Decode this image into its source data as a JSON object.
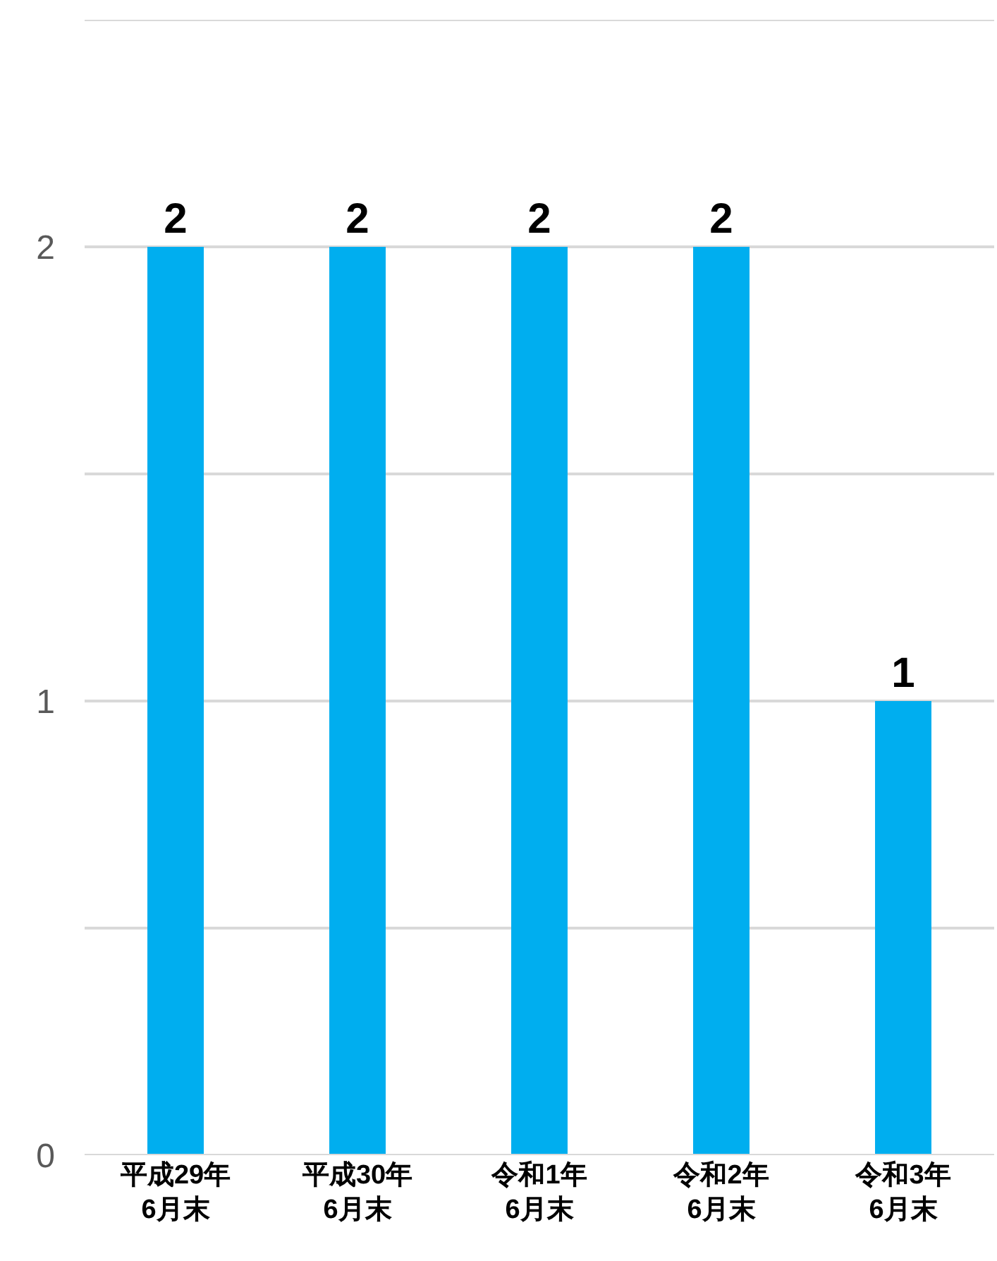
{
  "chart_data": {
    "type": "bar",
    "categories": [
      "平成29年\n6月末",
      "平成30年\n6月末",
      "令和1年\n6月末",
      "令和2年\n6月末",
      "令和3年\n6月末"
    ],
    "values": [
      2,
      2,
      2,
      2,
      1
    ],
    "color": "#00aeef",
    "ylim": [
      0,
      2.5
    ],
    "yticks": [
      0,
      {
        "value": 0.5,
        "label": null
      },
      1,
      {
        "value": 1.5,
        "label": null
      },
      2,
      {
        "value": 2.5,
        "label": null
      }
    ],
    "grid": "y",
    "data_labels": true,
    "legend": false
  }
}
